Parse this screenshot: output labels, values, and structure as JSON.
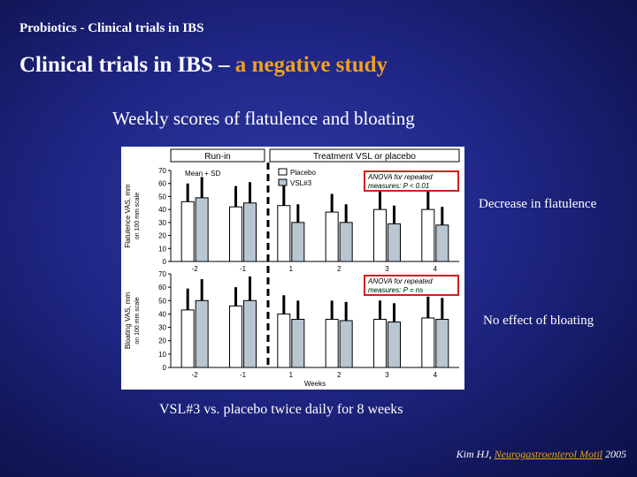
{
  "header": {
    "small_title": "Probiotics - Clinical trials in IBS"
  },
  "title": {
    "part1": "Clinical trials in IBS – ",
    "part2": "a negative study"
  },
  "subtitle": "Weekly scores of flatulence and bloating",
  "annotations": {
    "flatulence": "Decrease in flatulence",
    "bloating": "No effect of bloating"
  },
  "bottom_note": "VSL#3 vs. placebo twice daily for 8 weeks",
  "citation": {
    "author": "Kim HJ, ",
    "journal": "Neurogastroenterol Motil",
    "year": " 2005"
  },
  "colors": {
    "accent": "#f0a020",
    "placebo": "#ffffff",
    "vsl3": "#b8c6d2",
    "highlight_box": "#d02020"
  },
  "chart_data": [
    {
      "type": "bar",
      "panel": "top",
      "title": "Flatulence",
      "header_runin": "Run-in",
      "header_treatment": "Treatment VSL or placebo",
      "stat_label": "Mean + SD",
      "ylabel": "Flatulence VAS, mm",
      "ylabel2": "on 100 mm scale",
      "xlabel": "",
      "ylim": [
        0,
        70
      ],
      "yticks": [
        "0",
        "10",
        "20",
        "30",
        "40",
        "50",
        "60",
        "70"
      ],
      "categories": [
        "-2",
        "-1",
        "1",
        "2",
        "3",
        "4"
      ],
      "series": [
        {
          "name": "Placebo",
          "values": [
            46,
            42,
            43,
            38,
            40,
            40
          ],
          "sd": [
            14,
            16,
            16,
            14,
            14,
            14
          ]
        },
        {
          "name": "VSL#3",
          "values": [
            49,
            45,
            30,
            30,
            29,
            28
          ],
          "sd": [
            16,
            16,
            14,
            14,
            14,
            14
          ]
        }
      ],
      "anova_line1": "ANOVA for repeated",
      "anova_line2": "measures: P < 0.01"
    },
    {
      "type": "bar",
      "panel": "bottom",
      "title": "Bloating",
      "ylabel": "Bloating VAS, mm",
      "ylabel2": "on 100 mm scale",
      "xlabel": "Weeks",
      "ylim": [
        0,
        70
      ],
      "yticks": [
        "0",
        "10",
        "20",
        "30",
        "40",
        "50",
        "60",
        "70"
      ],
      "categories": [
        "-2",
        "-1",
        "1",
        "2",
        "3",
        "4"
      ],
      "series": [
        {
          "name": "Placebo",
          "values": [
            43,
            46,
            40,
            36,
            36,
            37
          ],
          "sd": [
            16,
            14,
            14,
            14,
            14,
            16
          ]
        },
        {
          "name": "VSL#3",
          "values": [
            50,
            50,
            36,
            35,
            34,
            36
          ],
          "sd": [
            16,
            18,
            14,
            14,
            14,
            16
          ]
        }
      ],
      "anova_line1": "ANOVA for repeated",
      "anova_line2": "measures: P = ns"
    }
  ]
}
